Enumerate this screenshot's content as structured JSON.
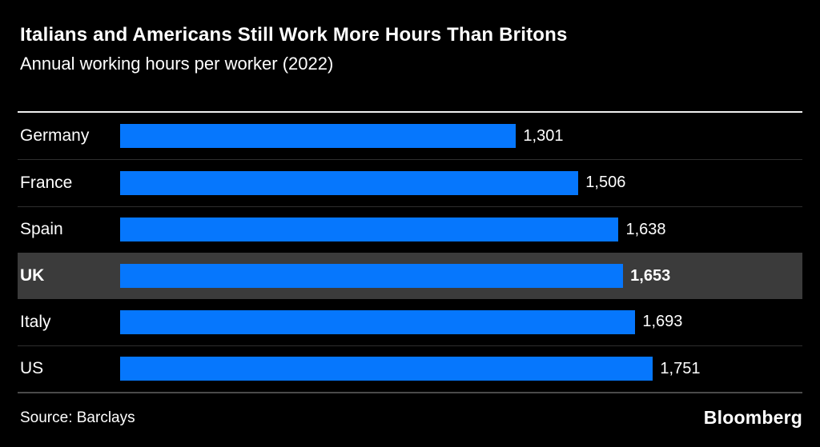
{
  "colors": {
    "background": "#000000",
    "bar_blue": "#0677FD",
    "highlight_row_gray": "#3B3B3B",
    "top_rule": "#F0F0F0",
    "row_separator": "#2E2E2E",
    "baseline_rule": "#4A4A4A",
    "text": "#FFFFFF"
  },
  "header": {
    "title": "Italians and Americans Still Work More Hours Than Britons",
    "subtitle": "Annual working hours per worker (2022)"
  },
  "chart_data": {
    "type": "bar",
    "orientation": "horizontal",
    "title": "Italians and Americans Still Work More Hours Than Britons",
    "subtitle": "Annual working hours per worker (2022)",
    "categories": [
      "Germany",
      "France",
      "Spain",
      "UK",
      "Italy",
      "US"
    ],
    "values": [
      1301,
      1506,
      1638,
      1653,
      1693,
      1751
    ],
    "value_labels": [
      "1,301",
      "1,506",
      "1,638",
      "1,653",
      "1,693",
      "1,751"
    ],
    "highlighted_category": "UK",
    "xlim": [
      0,
      1751
    ],
    "grid": false,
    "legend": "none",
    "bar_color": "#0677FD",
    "bar_area_fraction": 0.781,
    "separator_after_indices": [
      0,
      1,
      4
    ]
  },
  "footer": {
    "source": "Source: Barclays",
    "brand": "Bloomberg"
  }
}
